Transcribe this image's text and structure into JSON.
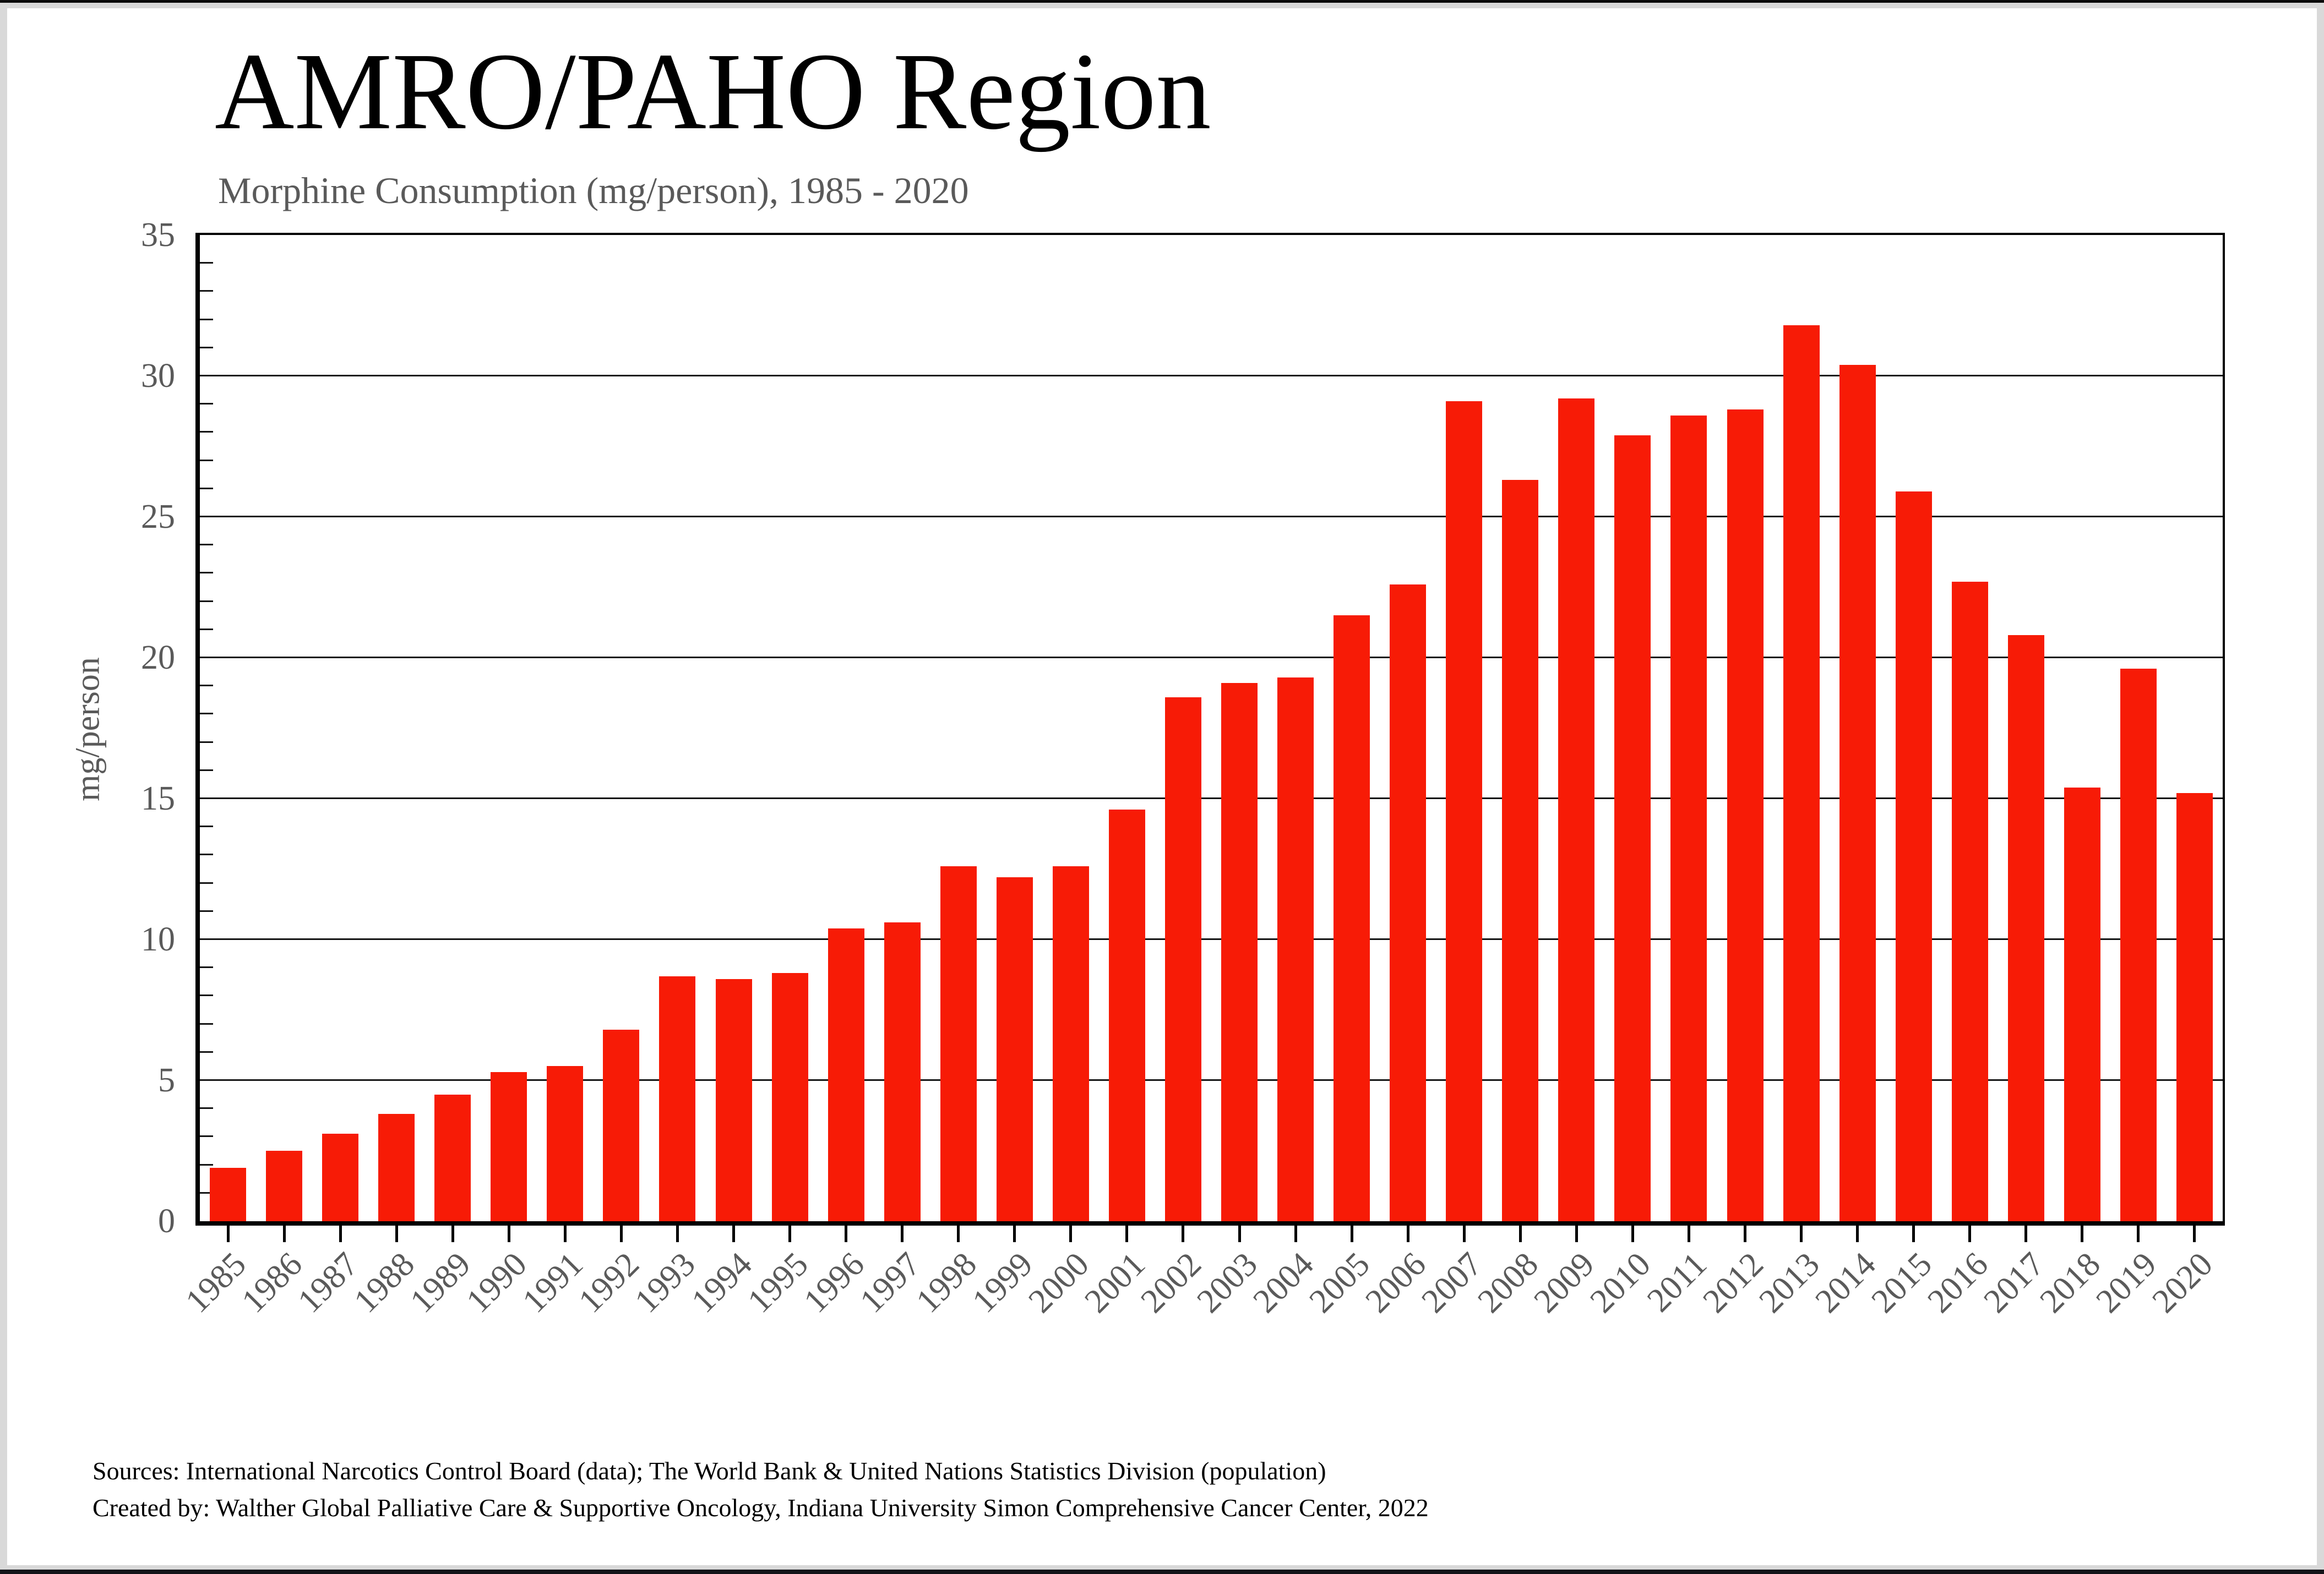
{
  "window": {
    "frame_top_color": "#0b0b0b",
    "frame_gray_color": "#d9d9d9",
    "frame_bottom_color": "#121318",
    "canvas_color": "#ffffff"
  },
  "header": {
    "title": "AMRO/PAHO Region",
    "subtitle": "Morphine Consumption (mg/person), 1985 - 2020",
    "title_color": "#000000",
    "subtitle_color": "#5a5a5a"
  },
  "chart_data": {
    "type": "bar",
    "title": "AMRO/PAHO Region",
    "subtitle": "Morphine Consumption (mg/person), 1985 - 2020",
    "xlabel": "",
    "ylabel": "mg/person",
    "ylim": [
      0,
      35
    ],
    "yticks": [
      0,
      5,
      10,
      15,
      20,
      25,
      30,
      35
    ],
    "minor_tick_interval": 1,
    "grid": true,
    "legend_position": "none",
    "bar_color": "#f71b06",
    "axis_color": "#000000",
    "label_color": "#5a5a5a",
    "categories": [
      "1985",
      "1986",
      "1987",
      "1988",
      "1989",
      "1990",
      "1991",
      "1992",
      "1993",
      "1994",
      "1995",
      "1996",
      "1997",
      "1998",
      "1999",
      "2000",
      "2001",
      "2002",
      "2003",
      "2004",
      "2005",
      "2006",
      "2007",
      "2008",
      "2009",
      "2010",
      "2011",
      "2012",
      "2013",
      "2014",
      "2015",
      "2016",
      "2017",
      "2018",
      "2019",
      "2020"
    ],
    "values": [
      1.9,
      2.5,
      3.1,
      3.8,
      4.5,
      5.3,
      5.5,
      6.8,
      8.7,
      8.6,
      8.8,
      10.4,
      10.6,
      12.6,
      12.2,
      12.6,
      14.6,
      18.6,
      19.1,
      19.3,
      21.5,
      22.6,
      29.1,
      26.3,
      29.2,
      27.9,
      28.6,
      28.8,
      31.8,
      30.4,
      25.9,
      22.7,
      20.8,
      15.4,
      19.6,
      15.2
    ]
  },
  "footer": {
    "line1": "Sources: International Narcotics Control Board (data); The World Bank & United Nations Statistics Division (population)",
    "line2": "Created by: Walther  Global Palliative Care & Supportive Oncology, Indiana University Simon Comprehensive Cancer Center, 2022",
    "color": "#000000"
  }
}
